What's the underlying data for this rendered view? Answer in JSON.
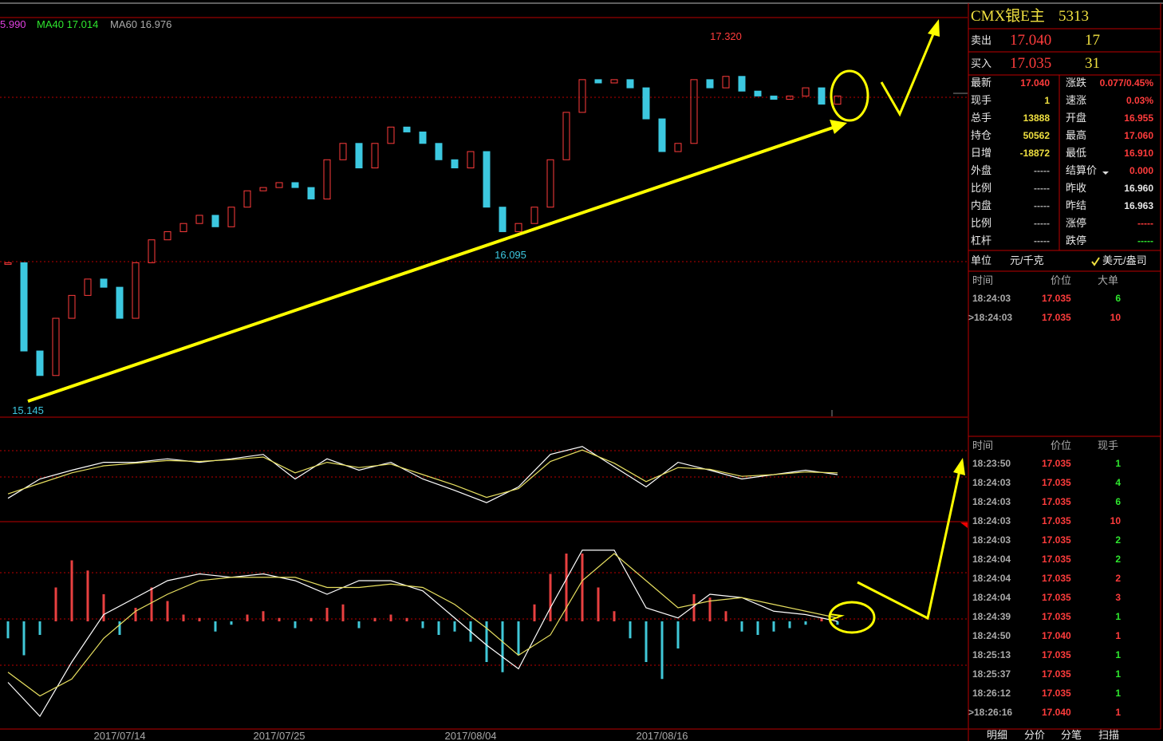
{
  "indicator_labels": [
    "5.990",
    "MA40 17.014",
    "MA60 16.976"
  ],
  "price_chart": {
    "ylim": [
      15.05,
      17.49
    ],
    "values": [
      15.99,
      15.45,
      15.3,
      15.65,
      15.79,
      15.89,
      15.84,
      15.65,
      15.99,
      16.13,
      16.18,
      16.23,
      16.28,
      16.21,
      16.33,
      16.43,
      16.45,
      16.48,
      16.45,
      16.38,
      16.62,
      16.72,
      16.57,
      16.72,
      16.82,
      16.79,
      16.72,
      16.62,
      16.57,
      16.67,
      16.33,
      16.18,
      16.23,
      16.33,
      16.62,
      16.91,
      17.11,
      17.09,
      17.11,
      17.06,
      16.87,
      16.67,
      16.72,
      17.11,
      17.06,
      17.13,
      17.04,
      17.01,
      16.99,
      17.01,
      17.06,
      16.96,
      17.01
    ],
    "high_label": "17.320",
    "mid_low_label": "16.095",
    "low_label": "15.145"
  },
  "dates": [
    null,
    null,
    null,
    null,
    null,
    null,
    null,
    "2017/07/14",
    null,
    null,
    null,
    null,
    null,
    null,
    null,
    null,
    null,
    "2017/07/25",
    null,
    null,
    null,
    null,
    null,
    null,
    null,
    null,
    null,
    null,
    null,
    "2017/08/04",
    null,
    null,
    null,
    null,
    null,
    null,
    null,
    null,
    null,
    null,
    null,
    "2017/08/16",
    null,
    null,
    null,
    null,
    null,
    null,
    null,
    null,
    null,
    null,
    null
  ],
  "oscillator": {
    "ylim": [
      0,
      100
    ],
    "series": [
      {
        "color": "#ffffff",
        "values": [
          23,
          45,
          55,
          64,
          64,
          68,
          64,
          68,
          73,
          45,
          68,
          55,
          64,
          45,
          32,
          18,
          36,
          73,
          82,
          59,
          36,
          64,
          55,
          45,
          50,
          55,
          50
        ]
      },
      {
        "color": "#e8e060",
        "values": [
          28,
          40,
          52,
          60,
          63,
          66,
          65,
          67,
          70,
          52,
          64,
          58,
          62,
          50,
          38,
          24,
          34,
          65,
          78,
          63,
          42,
          58,
          56,
          48,
          50,
          53,
          52
        ]
      }
    ]
  },
  "macd": {
    "ylim": [
      -0.32,
      0.28
    ],
    "histogram": [
      -0.05,
      -0.1,
      -0.04,
      0.1,
      0.18,
      0.15,
      0.08,
      -0.04,
      0.04,
      0.1,
      0.06,
      0.02,
      0.01,
      -0.03,
      -0.01,
      0.02,
      0.03,
      0.01,
      -0.02,
      0.01,
      0.04,
      0.05,
      -0.02,
      0.01,
      0.02,
      0.01,
      -0.02,
      -0.04,
      -0.03,
      -0.06,
      -0.12,
      -0.15,
      -0.1,
      0.05,
      0.14,
      0.2,
      0.2,
      0.1,
      0.03,
      -0.05,
      -0.12,
      -0.17,
      -0.08,
      0.08,
      0.07,
      0.03,
      -0.03,
      -0.04,
      -0.03,
      -0.02,
      -0.01,
      0.01,
      -0.01
    ],
    "series": [
      {
        "color": "#ffffff",
        "values": [
          -0.18,
          -0.28,
          -0.12,
          0.02,
          0.07,
          0.12,
          0.14,
          0.13,
          0.14,
          0.12,
          0.08,
          0.12,
          0.12,
          0.09,
          0.01,
          -0.07,
          -0.14,
          0.04,
          0.21,
          0.21,
          0.04,
          0.01,
          0.08,
          0.07,
          0.03,
          0.02,
          0.0
        ]
      },
      {
        "color": "#e8e060",
        "values": [
          -0.15,
          -0.22,
          -0.17,
          -0.05,
          0.03,
          0.08,
          0.12,
          0.13,
          0.13,
          0.13,
          0.1,
          0.1,
          0.11,
          0.1,
          0.05,
          -0.02,
          -0.1,
          -0.04,
          0.12,
          0.2,
          0.12,
          0.04,
          0.06,
          0.07,
          0.05,
          0.03,
          0.01
        ]
      }
    ]
  },
  "quote": {
    "symbol": "CMX银E主",
    "code": "5313",
    "ask": {
      "label": "卖出",
      "price": "17.040",
      "volume": "17"
    },
    "bid": {
      "label": "买入",
      "price": "17.035",
      "volume": "31"
    },
    "stats": [
      [
        "最新",
        "17.040",
        "涨跌",
        "0.077/0.45%"
      ],
      [
        "现手",
        "1",
        "速涨",
        "0.03%"
      ],
      [
        "总手",
        "13888",
        "开盘",
        "16.955"
      ],
      [
        "持仓",
        "50562",
        "最高",
        "17.060"
      ],
      [
        "日增",
        "-18872",
        "最低",
        "16.910"
      ],
      [
        "外盘",
        "-----",
        "结算价",
        "0.000"
      ],
      [
        "比例",
        "-----",
        "昨收",
        "16.960"
      ],
      [
        "内盘",
        "-----",
        "昨结",
        "16.963"
      ],
      [
        "比例",
        "-----",
        "涨停",
        "-----"
      ],
      [
        "杠杆",
        "-----",
        "跌停",
        "-----"
      ]
    ],
    "unit": {
      "label": "单位",
      "left": "元/千克",
      "right": "美元/盎司"
    }
  },
  "big_orders": {
    "headers": [
      "时间",
      "价位",
      "大单"
    ],
    "rows": [
      [
        "18:24:03",
        "17.035",
        "6"
      ],
      [
        ">18:24:03",
        "17.035",
        "10"
      ]
    ]
  },
  "ticks": {
    "headers": [
      "时间",
      "价位",
      "现手"
    ],
    "rows": [
      [
        "18:23:50",
        "17.035",
        "1"
      ],
      [
        "18:24:03",
        "17.035",
        "4"
      ],
      [
        "18:24:03",
        "17.035",
        "6"
      ],
      [
        "18:24:03",
        "17.035",
        "10"
      ],
      [
        "18:24:03",
        "17.035",
        "2"
      ],
      [
        "18:24:04",
        "17.035",
        "2"
      ],
      [
        "18:24:04",
        "17.035",
        "2"
      ],
      [
        "18:24:04",
        "17.035",
        "3"
      ],
      [
        "18:24:39",
        "17.035",
        "1"
      ],
      [
        "18:24:50",
        "17.040",
        "1"
      ],
      [
        "18:25:13",
        "17.035",
        "1"
      ],
      [
        "18:25:37",
        "17.035",
        "1"
      ],
      [
        "18:26:12",
        "17.035",
        "1"
      ],
      [
        ">18:26:16",
        "17.040",
        "1"
      ]
    ]
  },
  "tabs": [
    "明细",
    "分价",
    "分笔",
    "扫描"
  ]
}
